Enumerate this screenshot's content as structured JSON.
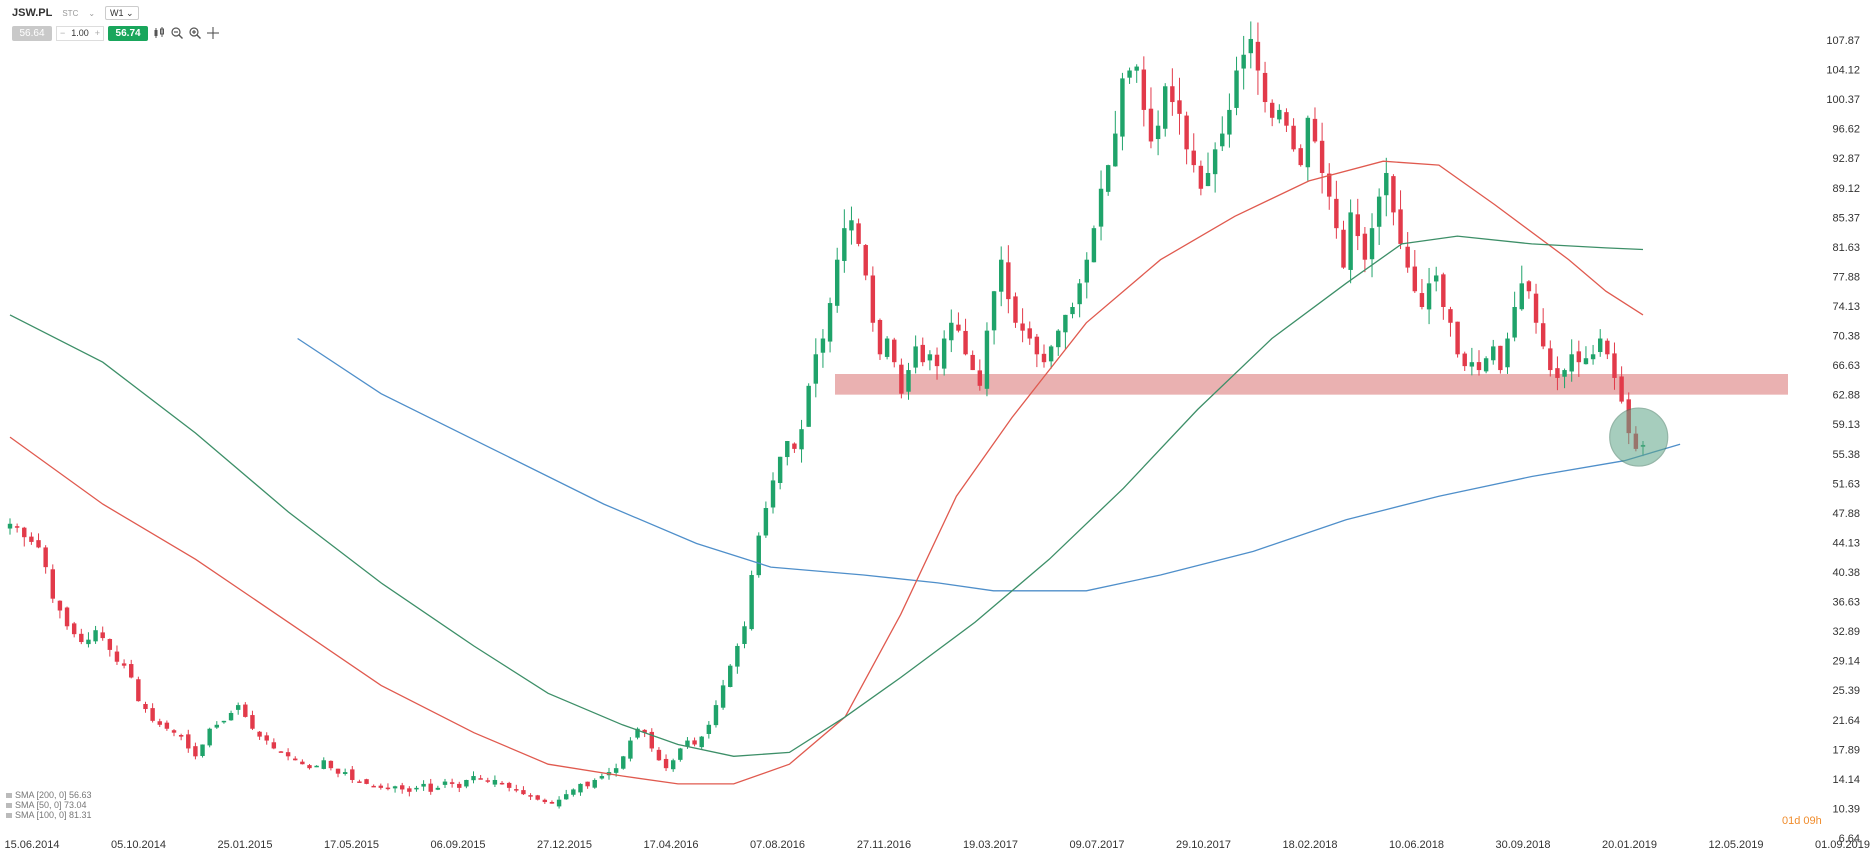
{
  "header": {
    "symbol": "JSW.PL",
    "symbol_dropdown": "STC",
    "timeframe": "W1",
    "bid": "56.64",
    "quantity": "1.00",
    "ask": "56.74",
    "minus": "−",
    "plus": "+"
  },
  "countdown": "01d 09h",
  "legend": [
    {
      "label": "SMA [200, 0] 56.63",
      "color": "#4f8fca"
    },
    {
      "label": "SMA [50, 0] 73.04",
      "color": "#e05a4f"
    },
    {
      "label": "SMA [100, 0] 81.31",
      "color": "#3d8f68"
    }
  ],
  "colors": {
    "up": "#1fa36a",
    "down": "#e23a4a",
    "sma200": "#4f8fca",
    "sma50": "#e05a4f",
    "sma100": "#3d8f68",
    "zone": "#e6a3a3",
    "circle": "#5fa688",
    "grid_text": "#333333"
  },
  "chart_data": {
    "type": "candlestick",
    "instrument": "JSW.PL",
    "timeframe": "W1",
    "y_ticks": [
      "107.87",
      "104.12",
      "100.37",
      "96.62",
      "92.87",
      "89.12",
      "85.37",
      "81.63",
      "77.88",
      "74.13",
      "70.38",
      "66.63",
      "62.88",
      "59.13",
      "55.38",
      "51.63",
      "47.88",
      "44.13",
      "40.38",
      "36.63",
      "32.89",
      "29.14",
      "25.39",
      "21.64",
      "17.89",
      "14.14",
      "10.39",
      "6.64"
    ],
    "ylim": [
      6.64,
      107.87
    ],
    "x_ticks": [
      "15.06.2014",
      "05.10.2014",
      "25.01.2015",
      "17.05.2015",
      "06.09.2015",
      "27.12.2015",
      "17.04.2016",
      "07.08.2016",
      "27.11.2016",
      "19.03.2017",
      "09.07.2017",
      "29.10.2017",
      "18.02.2018",
      "10.06.2018",
      "30.09.2018",
      "20.01.2019",
      "12.05.2019",
      "01.09.2019"
    ],
    "last_tick_index": 15,
    "candles_shown_through": "2019-02",
    "series": [
      {
        "name": "SMA [200, 0]",
        "last": 56.63
      },
      {
        "name": "SMA [50, 0]",
        "last": 73.04
      },
      {
        "name": "SMA [100, 0]",
        "last": 81.31
      }
    ],
    "support_zone": [
      62.88,
      65.5
    ],
    "highlight": {
      "price": 57.5,
      "near": "20.01.2019"
    },
    "closes": [
      46.5,
      46.0,
      44.8,
      44.2,
      43.5,
      41.0,
      37.0,
      35.5,
      33.5,
      32.5,
      31.5,
      31.8,
      33.0,
      32.0,
      30.5,
      29.0,
      28.5,
      27.0,
      24.0,
      23.0,
      21.5,
      21.0,
      20.5,
      20.0,
      19.5,
      18.0,
      17.0,
      18.5,
      20.5,
      21.0,
      21.5,
      22.5,
      23.5,
      22.0,
      20.5,
      19.5,
      19.0,
      18.0,
      17.5,
      17.0,
      16.5,
      16.0,
      15.5,
      15.8,
      16.5,
      15.5,
      14.8,
      15.0,
      14.0,
      13.8,
      13.5,
      13.2,
      13.0,
      13.0,
      13.2,
      12.8,
      12.5,
      13.0,
      13.5,
      12.5,
      13.0,
      13.8,
      13.5,
      13.0,
      14.0,
      14.5,
      14.2,
      13.8,
      14.0,
      13.5,
      13.0,
      12.8,
      12.2,
      12.0,
      11.5,
      11.2,
      11.0,
      11.5,
      12.2,
      12.8,
      13.5,
      13.2,
      14.0,
      14.5,
      15.0,
      15.5,
      17.0,
      19.0,
      20.5,
      20.0,
      18.0,
      16.5,
      15.5,
      16.5,
      18.0,
      19.0,
      18.5,
      19.5,
      21.0,
      23.5,
      26.0,
      28.5,
      31.0,
      33.5,
      40.0,
      45.0,
      48.5,
      52.0,
      55.0,
      57.0,
      56.0,
      58.5,
      64.0,
      68.0,
      70.0,
      74.5,
      80.0,
      84.0,
      85.0,
      82.0,
      78.0,
      72.0,
      68.0,
      70.0,
      67.0,
      63.0,
      66.0,
      69.0,
      67.0,
      68.0,
      66.5,
      70.0,
      72.0,
      71.0,
      68.0,
      66.0,
      64.0,
      71.0,
      76.0,
      80.0,
      75.0,
      72.0,
      71.0,
      70.0,
      68.0,
      67.0,
      69.0,
      71.0,
      73.0,
      74.0,
      77.0,
      80.0,
      84.0,
      89.0,
      92.0,
      96.0,
      103.0,
      104.0,
      104.5,
      99.0,
      95.0,
      97.0,
      102.0,
      100.0,
      98.5,
      94.0,
      92.0,
      89.0,
      91.0,
      94.0,
      96.0,
      99.0,
      104.0,
      106.0,
      108.0,
      104.0,
      100.0,
      98.0,
      99.0,
      97.0,
      94.0,
      92.0,
      98.0,
      95.0,
      91.0,
      88.0,
      84.0,
      79.0,
      86.0,
      83.0,
      80.0,
      84.0,
      88.0,
      91.0,
      86.0,
      82.0,
      79.0,
      76.0,
      74.0,
      77.0,
      78.0,
      74.0,
      72.0,
      68.0,
      66.5,
      67.0,
      66.0,
      67.5,
      69.0,
      66.0,
      70.0,
      74.0,
      77.0,
      76.0,
      72.0,
      69.0,
      66.0,
      65.0,
      66.0,
      68.0,
      67.0,
      67.5,
      68.0,
      70.0,
      68.0,
      65.0,
      62.0,
      58.0,
      56.0,
      56.5
    ],
    "sma200": [
      null,
      null,
      null,
      null,
      null,
      null,
      null,
      null,
      null,
      null,
      null,
      null,
      null,
      null,
      null,
      null,
      null,
      null,
      null,
      null,
      null,
      null,
      null,
      null,
      null,
      null,
      null,
      null,
      null,
      null,
      null,
      null,
      null,
      null,
      null,
      null,
      null,
      null,
      null,
      null,
      null,
      null,
      null,
      null,
      null,
      null,
      null,
      null,
      null,
      null,
      null,
      null,
      null,
      null,
      null,
      null,
      null,
      null,
      null,
      null,
      null,
      null,
      null,
      null,
      null,
      null,
      null,
      null,
      null,
      null,
      null,
      null,
      null,
      null,
      null,
      null,
      null,
      null,
      null,
      null,
      null,
      null,
      null,
      null,
      null,
      null,
      null,
      null,
      null,
      null,
      null,
      null,
      null,
      null,
      null,
      null,
      null,
      null,
      null,
      null,
      null,
      null,
      null,
      null,
      null,
      null,
      null,
      null,
      null,
      null,
      null,
      null,
      null,
      null,
      null,
      null,
      null,
      null,
      null,
      null,
      null,
      null,
      null,
      null,
      null,
      null,
      null,
      null,
      null,
      null,
      null,
      null,
      null,
      null,
      null,
      null,
      null,
      null,
      null,
      null,
      null,
      null,
      null,
      null,
      null,
      null,
      null,
      null,
      null,
      null,
      null,
      null,
      null,
      null,
      null,
      null,
      null,
      null,
      null,
      null,
      null,
      null,
      null,
      null,
      null,
      null,
      null,
      null,
      null,
      null,
      null,
      null,
      null,
      null,
      null,
      null,
      null,
      null,
      null,
      null,
      null,
      null,
      null,
      null,
      null,
      null,
      null,
      null,
      null,
      null,
      null,
      null,
      null,
      null,
      null,
      null,
      null,
      null,
      null,
      null,
      null,
      null,
      null,
      null,
      null,
      null,
      null,
      null,
      null,
      null,
      null,
      null,
      null,
      null,
      null,
      null,
      null,
      null,
      null,
      null,
      null,
      null,
      null,
      null,
      null,
      null,
      null,
      null,
      null,
      null,
      null,
      null,
      null,
      null,
      null,
      null,
      null,
      null,
      null,
      null,
      null,
      null
    ],
    "sma200_points": [
      [
        0.155,
        70.0
      ],
      [
        0.2,
        63.0
      ],
      [
        0.26,
        56.0
      ],
      [
        0.32,
        49.0
      ],
      [
        0.37,
        44.0
      ],
      [
        0.41,
        41.0
      ],
      [
        0.46,
        40.0
      ],
      [
        0.5,
        39.0
      ],
      [
        0.53,
        38.0
      ],
      [
        0.58,
        38.0
      ],
      [
        0.62,
        40.0
      ],
      [
        0.67,
        43.0
      ],
      [
        0.72,
        47.0
      ],
      [
        0.77,
        50.0
      ],
      [
        0.82,
        52.5
      ],
      [
        0.87,
        54.5
      ],
      [
        0.9,
        56.6
      ]
    ],
    "sma50_points": [
      [
        0.0,
        57.5
      ],
      [
        0.05,
        49.0
      ],
      [
        0.1,
        42.0
      ],
      [
        0.15,
        34.0
      ],
      [
        0.2,
        26.0
      ],
      [
        0.25,
        20.0
      ],
      [
        0.29,
        16.0
      ],
      [
        0.33,
        14.5
      ],
      [
        0.36,
        13.5
      ],
      [
        0.39,
        13.5
      ],
      [
        0.42,
        16.0
      ],
      [
        0.45,
        22.0
      ],
      [
        0.48,
        35.0
      ],
      [
        0.51,
        50.0
      ],
      [
        0.54,
        60.0
      ],
      [
        0.58,
        72.0
      ],
      [
        0.62,
        80.0
      ],
      [
        0.66,
        85.5
      ],
      [
        0.7,
        90.0
      ],
      [
        0.74,
        92.5
      ],
      [
        0.77,
        92.0
      ],
      [
        0.8,
        87.0
      ],
      [
        0.84,
        80.0
      ],
      [
        0.86,
        76.0
      ],
      [
        0.88,
        73.0
      ]
    ],
    "sma100_points": [
      [
        0.0,
        73.0
      ],
      [
        0.05,
        67.0
      ],
      [
        0.1,
        58.0
      ],
      [
        0.15,
        48.0
      ],
      [
        0.2,
        39.0
      ],
      [
        0.25,
        31.0
      ],
      [
        0.29,
        25.0
      ],
      [
        0.33,
        21.0
      ],
      [
        0.36,
        18.5
      ],
      [
        0.39,
        17.0
      ],
      [
        0.42,
        17.5
      ],
      [
        0.45,
        22.0
      ],
      [
        0.48,
        27.0
      ],
      [
        0.52,
        34.0
      ],
      [
        0.56,
        42.0
      ],
      [
        0.6,
        51.0
      ],
      [
        0.64,
        61.0
      ],
      [
        0.68,
        70.0
      ],
      [
        0.72,
        77.0
      ],
      [
        0.75,
        82.0
      ],
      [
        0.78,
        83.0
      ],
      [
        0.82,
        82.0
      ],
      [
        0.86,
        81.5
      ],
      [
        0.88,
        81.3
      ]
    ]
  }
}
